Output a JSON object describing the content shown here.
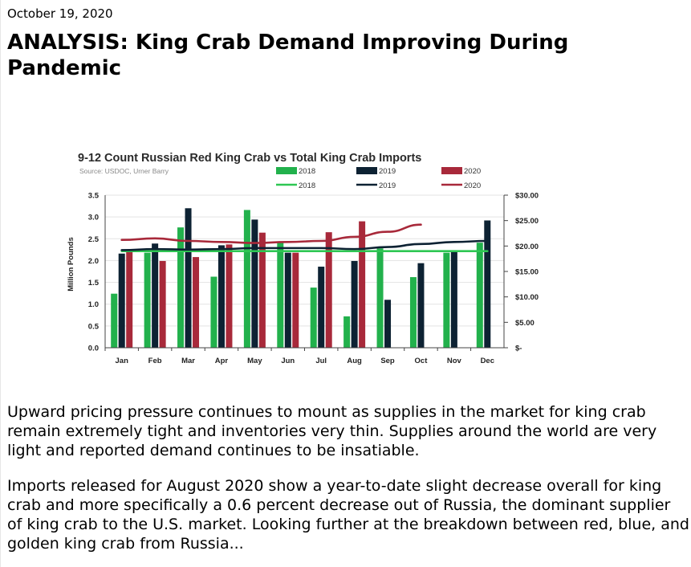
{
  "article": {
    "date": "October 19, 2020",
    "title": "ANALYSIS: King Crab Demand Improving During Pandemic",
    "paragraphs": [
      "Upward pricing pressure continues to mount as supplies in the market for king crab remain extremely tight and inventories very thin. Supplies around the world are very light and reported demand continues to be insatiable.",
      "Imports released for August 2020 show a year-to-date slight decrease overall for king crab and more specifically a 0.6 percent decrease out of Russia, the dominant supplier of king crab to the U.S. market. Looking further at the breakdown between red, blue, and golden king crab from Russia..."
    ]
  },
  "chart_data": {
    "type": "bar",
    "title": "9-12 Count Russian Red King Crab vs Total King Crab Imports",
    "subtitle": "Source: USDOC, Urner Barry",
    "ylabel": "Million Pounds",
    "categories": [
      "Jan",
      "Feb",
      "Mar",
      "Apr",
      "May",
      "Jun",
      "Jul",
      "Aug",
      "Sep",
      "Oct",
      "Nov",
      "Dec"
    ],
    "ylim": [
      0,
      3.5
    ],
    "yticks": [
      "0.0",
      "0.5",
      "1.0",
      "1.5",
      "2.0",
      "2.5",
      "3.0",
      "3.5"
    ],
    "ylim_right": [
      0,
      30
    ],
    "yticks_right": [
      "$-",
      "$5.00",
      "$10.00",
      "$15.00",
      "$20.00",
      "$25.00",
      "$30.00"
    ],
    "legend_position": "top-right",
    "series": [
      {
        "name": "2018",
        "kind": "bar",
        "color": "#22b14c",
        "values": [
          1.24,
          2.18,
          2.76,
          1.63,
          3.16,
          2.44,
          1.38,
          0.72,
          2.28,
          1.62,
          2.18,
          2.41
        ]
      },
      {
        "name": "2019",
        "kind": "bar",
        "color": "#0d2233",
        "values": [
          2.16,
          2.39,
          3.2,
          2.35,
          2.94,
          2.18,
          1.86,
          1.99,
          1.1,
          1.94,
          2.22,
          2.92
        ]
      },
      {
        "name": "2020",
        "kind": "bar",
        "color": "#a8293a",
        "values": [
          2.22,
          1.99,
          2.08,
          2.37,
          2.64,
          2.18,
          2.65,
          2.9,
          null,
          null,
          null,
          null
        ]
      },
      {
        "name": "2018",
        "kind": "line",
        "color": "#2ec753",
        "values": [
          19.0,
          19.0,
          19.0,
          19.0,
          19.0,
          19.0,
          19.0,
          19.0,
          19.0,
          19.0,
          19.0,
          19.0
        ]
      },
      {
        "name": "2019",
        "kind": "line",
        "color": "#0d2233",
        "values": [
          19.2,
          19.4,
          19.3,
          19.4,
          19.6,
          19.6,
          19.6,
          19.4,
          19.8,
          20.4,
          20.8,
          21.0
        ]
      },
      {
        "name": "2020",
        "kind": "line",
        "color": "#a8293a",
        "values": [
          21.2,
          21.5,
          21.0,
          20.8,
          20.6,
          20.8,
          21.0,
          21.8,
          22.8,
          24.2,
          null,
          null
        ]
      }
    ]
  }
}
